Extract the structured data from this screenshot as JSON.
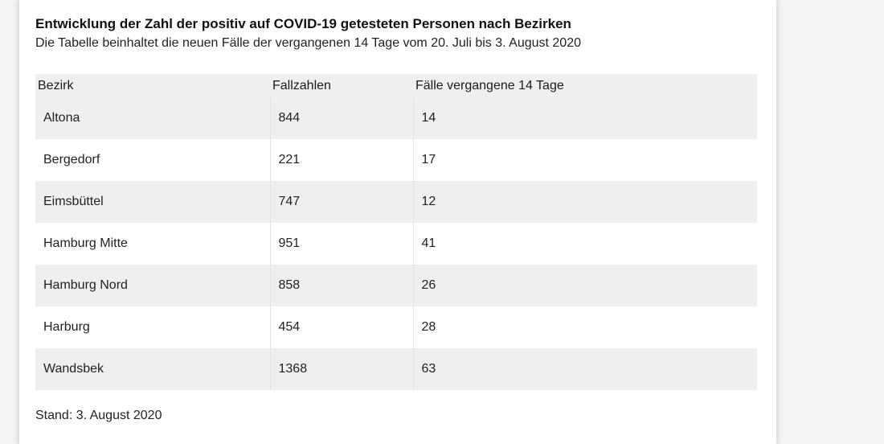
{
  "title": "Entwicklung der Zahl der positiv auf COVID-19 getesteten Personen nach Bezirken",
  "subtitle": "Die Tabelle beinhaltet die neuen Fälle der vergangenen 14 Tage vom 20. Juli bis 3. August 2020",
  "table": {
    "headers": [
      "Bezirk",
      "Fallzahlen",
      "Fälle vergangene 14 Tage"
    ],
    "rows": [
      [
        "Altona",
        "844",
        "14"
      ],
      [
        "Bergedorf",
        "221",
        "17"
      ],
      [
        "Eimsbüttel",
        "747",
        "12"
      ],
      [
        "Hamburg Mitte",
        "951",
        "41"
      ],
      [
        "Hamburg Nord",
        "858",
        "26"
      ],
      [
        "Harburg",
        "454",
        "28"
      ],
      [
        "Wandsbek",
        "1368",
        "63"
      ]
    ]
  },
  "footer": "Stand: 3. August 2020"
}
